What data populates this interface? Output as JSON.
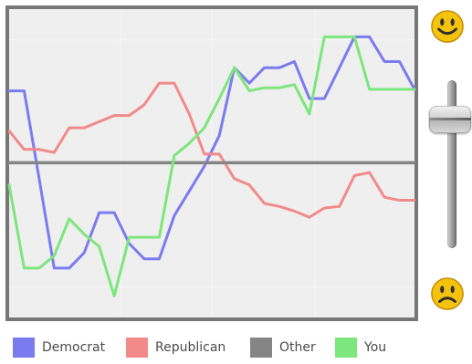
{
  "chart_data": {
    "type": "line",
    "title": "",
    "xlabel": "",
    "ylabel": "",
    "grid": true,
    "legend_position": "bottom",
    "ylim": [
      -5,
      5
    ],
    "series": [
      {
        "name": "Democrat",
        "color": "#7b7bf0",
        "values": [
          2.35,
          2.35,
          -0.5,
          -3.4,
          -3.4,
          -2.9,
          -1.6,
          -1.6,
          -2.6,
          -3.1,
          -3.1,
          -1.7,
          -0.9,
          -0.1,
          0.9,
          3.1,
          2.6,
          3.1,
          3.1,
          3.3,
          2.1,
          2.1,
          3.1,
          4.1,
          4.1,
          3.3,
          3.3,
          2.4
        ]
      },
      {
        "name": "Republican",
        "color": "#f28a8a",
        "values": [
          1.05,
          0.45,
          0.45,
          0.35,
          1.15,
          1.15,
          1.35,
          1.55,
          1.55,
          1.9,
          2.6,
          2.6,
          1.6,
          0.3,
          0.3,
          -0.5,
          -0.7,
          -1.3,
          -1.4,
          -1.55,
          -1.75,
          -1.45,
          -1.4,
          -0.4,
          -0.3,
          -1.1,
          -1.2,
          -1.2
        ]
      },
      {
        "name": "Other",
        "color": "#858585",
        "values": [
          0.02,
          0.02,
          0.02,
          0.02,
          0.02,
          0.02,
          0.02,
          0.02,
          0.02,
          0.02,
          0.02,
          0.02,
          0.02,
          0.02,
          0.02,
          0.02,
          0.02,
          0.02,
          0.02,
          0.02,
          0.02,
          0.02,
          0.02,
          0.02,
          0.02,
          0.02,
          0.02,
          0.02
        ]
      },
      {
        "name": "You",
        "color": "#7de67d",
        "values": [
          -0.7,
          -3.4,
          -3.4,
          -3.0,
          -1.8,
          -2.3,
          -2.7,
          -4.3,
          -2.4,
          -2.4,
          -2.4,
          0.25,
          0.65,
          1.15,
          2.1,
          3.1,
          2.35,
          2.45,
          2.45,
          2.55,
          1.6,
          4.1,
          4.1,
          4.1,
          2.4,
          2.4,
          2.4,
          2.4
        ]
      }
    ]
  },
  "legend": [
    {
      "label": "Democrat",
      "color": "#7b7bf0"
    },
    {
      "label": "Republican",
      "color": "#f28a8a"
    },
    {
      "label": "Other",
      "color": "#858585"
    },
    {
      "label": "You",
      "color": "#7de67d"
    }
  ],
  "controls": {
    "slider": {
      "value": 0.82
    },
    "top_icon": "smiley-icon",
    "bottom_icon": "sad-face-icon"
  }
}
